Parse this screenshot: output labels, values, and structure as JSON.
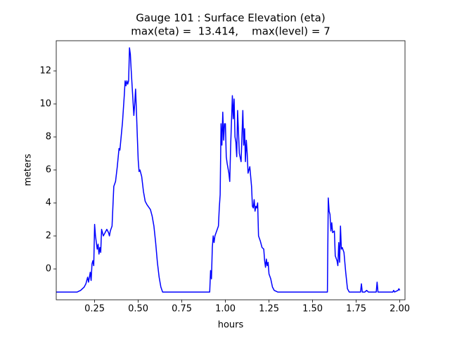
{
  "chart_data": {
    "type": "line",
    "title": [
      "Gauge 101 : Surface Elevation (eta)",
      "max(eta) =  13.414,    max(level) = 7"
    ],
    "x_label": "hours",
    "y_label": "meters",
    "color": "#0000ff",
    "xlim": [
      0.03,
      2.03
    ],
    "ylim": [
      -1.87,
      13.83
    ],
    "xticks": [
      0.25,
      {
        "value": 0.5,
        "label": "0.50"
      },
      0.75,
      {
        "value": 1,
        "label": "1.00"
      },
      1.25,
      {
        "value": 1.5,
        "label": "1.50"
      },
      1.75,
      {
        "value": 2,
        "label": "2.00"
      }
    ],
    "yticks": [
      0,
      2,
      4,
      6,
      8,
      10,
      12
    ],
    "x": [
      0.03,
      0.15,
      0.17,
      0.19,
      0.2,
      0.21,
      0.215,
      0.225,
      0.23,
      0.235,
      0.24,
      0.245,
      0.25,
      0.255,
      0.26,
      0.265,
      0.27,
      0.275,
      0.28,
      0.285,
      0.29,
      0.3,
      0.31,
      0.32,
      0.33,
      0.335,
      0.34,
      0.35,
      0.36,
      0.37,
      0.38,
      0.39,
      0.395,
      0.41,
      0.42,
      0.425,
      0.43,
      0.435,
      0.44,
      0.445,
      0.45,
      0.455,
      0.46,
      0.47,
      0.475,
      0.48,
      0.485,
      0.49,
      0.495,
      0.5,
      0.505,
      0.51,
      0.52,
      0.53,
      0.54,
      0.55,
      0.57,
      0.58,
      0.59,
      0.6,
      0.61,
      0.62,
      0.63,
      0.64,
      0.91,
      0.915,
      0.92,
      0.925,
      0.93,
      0.935,
      0.94,
      0.95,
      0.96,
      0.965,
      0.97,
      0.975,
      0.98,
      0.985,
      0.99,
      0.995,
      1.0,
      1.005,
      1.01,
      1.02,
      1.025,
      1.03,
      1.04,
      1.045,
      1.05,
      1.055,
      1.06,
      1.065,
      1.07,
      1.08,
      1.09,
      1.1,
      1.105,
      1.11,
      1.115,
      1.12,
      1.125,
      1.13,
      1.14,
      1.15,
      1.155,
      1.16,
      1.165,
      1.17,
      1.175,
      1.18,
      1.185,
      1.19,
      1.2,
      1.21,
      1.22,
      1.225,
      1.23,
      1.235,
      1.24,
      1.245,
      1.25,
      1.26,
      1.27,
      1.28,
      1.3,
      1.585,
      1.59,
      1.595,
      1.6,
      1.605,
      1.61,
      1.615,
      1.625,
      1.63,
      1.64,
      1.645,
      1.65,
      1.655,
      1.66,
      1.665,
      1.67,
      1.68,
      1.69,
      1.7,
      1.71,
      1.775,
      1.78,
      1.785,
      1.8,
      1.81,
      1.82,
      1.865,
      1.87,
      1.875,
      1.96,
      1.965,
      1.97,
      1.99,
      1.995,
      2.0
    ],
    "values": [
      -1.4,
      -1.4,
      -1.3,
      -1.1,
      -0.9,
      -0.5,
      -0.8,
      -0.2,
      -0.7,
      0.3,
      0.5,
      0.2,
      2.7,
      2.0,
      1.6,
      1.2,
      1.5,
      0.9,
      1.3,
      1.0,
      2.4,
      2.0,
      2.2,
      2.4,
      2.2,
      2.0,
      2.3,
      2.6,
      5.0,
      5.3,
      6.2,
      7.3,
      7.2,
      8.9,
      10.5,
      11.4,
      11.1,
      11.4,
      11.2,
      11.4,
      13.4,
      13.0,
      12.0,
      10.2,
      9.3,
      10.0,
      10.9,
      9.5,
      8.0,
      6.6,
      5.9,
      6.0,
      5.6,
      4.7,
      4.1,
      3.9,
      3.6,
      3.2,
      2.6,
      1.6,
      0.4,
      -0.5,
      -1.1,
      -1.4,
      -1.4,
      -0.1,
      -0.6,
      1.3,
      2.0,
      1.6,
      2.0,
      2.3,
      2.6,
      3.7,
      4.5,
      8.8,
      7.5,
      9.5,
      7.8,
      8.8,
      8.8,
      6.8,
      6.4,
      5.8,
      5.3,
      7.4,
      10.5,
      9.1,
      10.3,
      8.0,
      7.7,
      6.8,
      9.6,
      7.0,
      6.5,
      9.6,
      7.5,
      8.5,
      6.5,
      7.8,
      7.0,
      5.8,
      6.2,
      5.0,
      3.8,
      3.7,
      4.2,
      3.5,
      3.8,
      3.7,
      4.0,
      2.0,
      1.7,
      1.3,
      1.2,
      0.5,
      0.1,
      0.6,
      0.2,
      0.4,
      -0.3,
      -0.6,
      -1.1,
      -1.3,
      -1.4,
      -1.4,
      4.3,
      3.5,
      3.3,
      2.3,
      2.8,
      2.2,
      2.3,
      0.8,
      0.5,
      0.2,
      1.6,
      0.4,
      2.6,
      1.2,
      1.3,
      1.0,
      -0.2,
      -1.2,
      -1.4,
      -1.4,
      -0.9,
      -1.4,
      -1.4,
      -1.3,
      -1.4,
      -1.4,
      -0.8,
      -1.4,
      -1.4,
      -1.3,
      -1.4,
      -1.3,
      -1.2,
      -1.3
    ]
  }
}
